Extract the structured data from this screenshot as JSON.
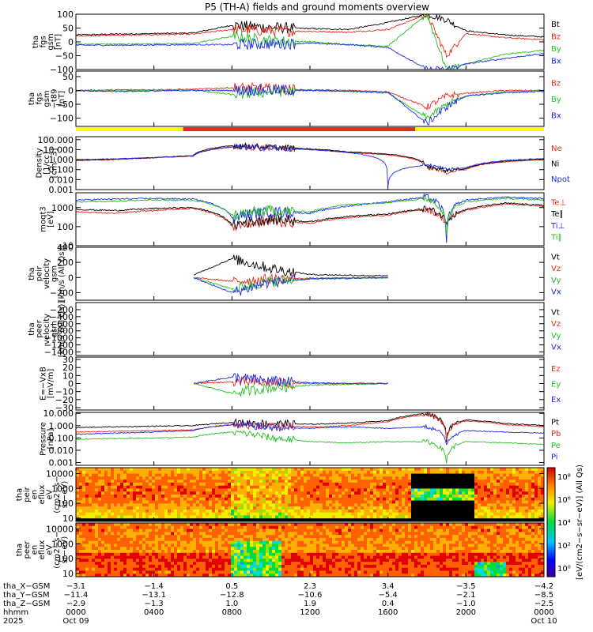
{
  "title": "P5 (TH-A) fields and ground moments overview",
  "panels": [
    {
      "id": "p1",
      "type": "line",
      "ylabel": [
        "tha",
        "fgs",
        "gsm",
        "[nT]"
      ],
      "ylim": [
        -100,
        100
      ],
      "scale": "linear",
      "ticks": [
        {
          "v": 100,
          "t": "100"
        },
        {
          "v": 50,
          "t": "50"
        },
        {
          "v": 0,
          "t": "0"
        },
        {
          "v": -50,
          "t": "−50"
        },
        {
          "v": -100,
          "t": "−100"
        }
      ],
      "legend": [
        {
          "label": "Bt",
          "color": "#000000"
        },
        {
          "label": "Bz",
          "color": "#e8291c"
        },
        {
          "label": "By",
          "color": "#22c01e"
        },
        {
          "label": "Bx",
          "color": "#1c2ae8"
        }
      ]
    },
    {
      "id": "p2",
      "type": "line",
      "ylabel": [
        "tha",
        "fgs",
        "gsm",
        "−t89",
        "[nT]"
      ],
      "ylim": [
        -130,
        70
      ],
      "scale": "linear",
      "ticks": [
        {
          "v": 50,
          "t": "50"
        },
        {
          "v": 0,
          "t": "0"
        },
        {
          "v": -50,
          "t": "−50"
        },
        {
          "v": -100,
          "t": "−100"
        }
      ],
      "legend": [
        {
          "label": "Bz",
          "color": "#e8291c"
        },
        {
          "label": "By",
          "color": "#22c01e"
        },
        {
          "label": "Bx",
          "color": "#1c2ae8"
        }
      ]
    },
    {
      "id": "p3",
      "type": "line",
      "ylabel": [
        "Density",
        "[1/cc]",
        "[cm−3]"
      ],
      "ylim": [
        0.001,
        200
      ],
      "scale": "log",
      "ticks": [
        {
          "v": 100,
          "t": "100.000"
        },
        {
          "v": 10,
          "t": "10.000"
        },
        {
          "v": 1,
          "t": "1.000"
        },
        {
          "v": 0.1,
          "t": "0.100"
        },
        {
          "v": 0.01,
          "t": "0.010"
        },
        {
          "v": 0.001,
          "t": "0.001"
        }
      ],
      "legend": [
        {
          "label": "Ne",
          "color": "#e8291c"
        },
        {
          "label": "Ni",
          "color": "#000000"
        },
        {
          "label": "Npot",
          "color": "#1c2ae8"
        }
      ]
    },
    {
      "id": "p4",
      "type": "line",
      "ylabel": [
        "moqt3",
        "[eV]"
      ],
      "ylim": [
        10,
        6000
      ],
      "scale": "log",
      "ticks": [
        {
          "v": 1000,
          "t": "1000"
        },
        {
          "v": 100,
          "t": "100"
        },
        {
          "v": 10,
          "t": "10"
        }
      ],
      "legend": [
        {
          "label": "Te⊥",
          "color": "#e8291c"
        },
        {
          "label": "Te∥",
          "color": "#000000"
        },
        {
          "label": "Ti⊥",
          "color": "#1c2ae8"
        },
        {
          "label": "Ti∥",
          "color": "#22c01e"
        }
      ]
    },
    {
      "id": "p5",
      "type": "line",
      "ylabel": [
        "tha",
        "peir",
        "velocity",
        "gsm",
        "[km/s (All Qs)]"
      ],
      "ylim": [
        -300,
        400
      ],
      "scale": "linear",
      "ticks": [
        {
          "v": 400,
          "t": "400"
        },
        {
          "v": 200,
          "t": "200"
        },
        {
          "v": 0,
          "t": "0"
        },
        {
          "v": -200,
          "t": "−200"
        }
      ],
      "legend": [
        {
          "label": "Vt",
          "color": "#000000"
        },
        {
          "label": "Vz",
          "color": "#e8291c"
        },
        {
          "label": "Vy",
          "color": "#22c01e"
        },
        {
          "label": "Vx",
          "color": "#1c2ae8"
        }
      ]
    },
    {
      "id": "p6",
      "type": "line",
      "ylabel": [
        "tha",
        "peer",
        "velocity",
        "gsm",
        "[km/s (All Qs)]"
      ],
      "ylim": [
        -1500,
        0
      ],
      "scale": "linear",
      "ticks": [
        {
          "v": -200,
          "t": "−200"
        },
        {
          "v": -400,
          "t": "−400"
        },
        {
          "v": -600,
          "t": "−600"
        },
        {
          "v": -800,
          "t": "−800"
        },
        {
          "v": -1000,
          "t": "−1000"
        },
        {
          "v": -1200,
          "t": "−1200"
        },
        {
          "v": -1400,
          "t": "−1400"
        }
      ],
      "legend": [
        {
          "label": "Vt",
          "color": "#000000"
        },
        {
          "label": "Vz",
          "color": "#e8291c"
        },
        {
          "label": "Vy",
          "color": "#22c01e"
        },
        {
          "label": "Vx",
          "color": "#1c2ae8"
        }
      ]
    },
    {
      "id": "p7",
      "type": "line",
      "ylabel": [
        "E=−VxB",
        "[mV/m]"
      ],
      "ylim": [
        -33,
        33
      ],
      "scale": "linear",
      "ticks": [
        {
          "v": 30,
          "t": "30"
        },
        {
          "v": 20,
          "t": "20"
        },
        {
          "v": 10,
          "t": "10"
        },
        {
          "v": 0,
          "t": "0"
        },
        {
          "v": -10,
          "t": "−10"
        },
        {
          "v": -20,
          "t": "−20"
        },
        {
          "v": -30,
          "t": "−30"
        }
      ],
      "legend": [
        {
          "label": "Ez",
          "color": "#e8291c"
        },
        {
          "label": "Ey",
          "color": "#22c01e"
        },
        {
          "label": "Ex",
          "color": "#1c2ae8"
        }
      ]
    },
    {
      "id": "p8",
      "type": "line",
      "ylabel": [
        "Pressure",
        "[nPa]"
      ],
      "ylim": [
        0.0006,
        12
      ],
      "scale": "log",
      "ticks": [
        {
          "v": 10,
          "t": "10.000"
        },
        {
          "v": 1,
          "t": "1.000"
        },
        {
          "v": 0.1,
          "t": "0.100"
        },
        {
          "v": 0.01,
          "t": "0.010"
        },
        {
          "v": 0.001,
          "t": "0.001"
        }
      ],
      "legend": [
        {
          "label": "Pt",
          "color": "#000000"
        },
        {
          "label": "Pb",
          "color": "#e8291c"
        },
        {
          "label": "Pe",
          "color": "#22c01e"
        },
        {
          "label": "Pi",
          "color": "#1c2ae8"
        }
      ]
    },
    {
      "id": "p9",
      "type": "heatmap",
      "ylabel": [
        "tha",
        "peir",
        "en",
        "eflux",
        "eV",
        "(cm2−s−",
        "sr−eV)"
      ],
      "ylim": [
        6,
        25000
      ],
      "scale": "log",
      "ticks": [
        {
          "v": 10000,
          "t": "10000"
        },
        {
          "v": 1000,
          "t": "1000"
        },
        {
          "v": 100,
          "t": "100"
        },
        {
          "v": 10,
          "t": "10"
        }
      ]
    },
    {
      "id": "p10",
      "type": "heatmap",
      "ylabel": [
        "tha",
        "peer",
        "en",
        "eflux",
        "eV",
        "(cm2−s−",
        "sr−eV)"
      ],
      "ylim": [
        6,
        25000
      ],
      "scale": "log",
      "ticks": [
        {
          "v": 10000,
          "t": "10000"
        },
        {
          "v": 1000,
          "t": "1000"
        },
        {
          "v": 100,
          "t": "100"
        },
        {
          "v": 10,
          "t": "10"
        }
      ]
    }
  ],
  "mode_bar": {
    "colors": {
      "slow": "#ffff00",
      "fast": "#e8291c"
    },
    "segments": [
      {
        "from": 0,
        "to": 5.5,
        "mode": "slow"
      },
      {
        "from": 5.5,
        "to": 17.4,
        "mode": "fast"
      },
      {
        "from": 17.4,
        "to": 24,
        "mode": "slow"
      }
    ]
  },
  "colorbar": {
    "label": "[eV/(cm2−s−sr−eV)] (All Qs)",
    "tick_labels": [
      "10⁸",
      "10⁶",
      "10⁴",
      "10²",
      "10⁰"
    ]
  },
  "xaxis": {
    "row_labels": [
      "tha_X−GSM",
      "tha_Y−GSM",
      "tha_Z−GSM",
      "hhmm",
      "2025"
    ],
    "ticks": [
      {
        "h": 0,
        "x": "−3.1",
        "y": "−11.4",
        "z": "−2.9",
        "hhmm": "0000",
        "date": "Oct 09"
      },
      {
        "h": 4,
        "x": "−1.4",
        "y": "−13.1",
        "z": "−1.3",
        "hhmm": "0400",
        "date": ""
      },
      {
        "h": 8,
        "x": "0.5",
        "y": "−12.8",
        "z": "1.0",
        "hhmm": "0800",
        "date": ""
      },
      {
        "h": 12,
        "x": "2.3",
        "y": "−10.6",
        "z": "1.9",
        "hhmm": "1200",
        "date": ""
      },
      {
        "h": 16,
        "x": "3.4",
        "y": "−5.4",
        "z": "0.4",
        "hhmm": "1600",
        "date": ""
      },
      {
        "h": 20,
        "x": "−3.5",
        "y": "−2.1",
        "z": "−1.0",
        "hhmm": "2000",
        "date": ""
      },
      {
        "h": 24,
        "x": "−4.2",
        "y": "−8.5",
        "z": "−2.5",
        "hhmm": "0000",
        "date": "Oct 10"
      }
    ]
  },
  "chart_data": {
    "type": "line",
    "title": "P5 (TH-A) fields and ground moments overview",
    "x_unit": "hours (UT) from 2025 Oct 09 0000",
    "x": [
      0,
      2,
      4,
      6,
      8,
      10,
      12,
      14,
      16,
      18,
      19,
      20,
      22,
      24
    ],
    "panels": [
      {
        "panel": "B fgs gsm [nT]",
        "series": [
          {
            "name": "Bt",
            "values": [
              25,
              28,
              30,
              32,
              60,
              52,
              48,
              45,
              70,
              100,
              80,
              40,
              25,
              18
            ]
          },
          {
            "name": "Bz",
            "values": [
              22,
              24,
              26,
              28,
              45,
              40,
              38,
              35,
              45,
              100,
              -50,
              30,
              15,
              8
            ]
          },
          {
            "name": "By",
            "values": [
              -8,
              -8,
              -7,
              -6,
              20,
              5,
              0,
              -10,
              -15,
              100,
              -100,
              -80,
              -45,
              -30
            ]
          },
          {
            "name": "Bx",
            "values": [
              -12,
              -12,
              -11,
              -10,
              -10,
              -8,
              -5,
              -10,
              -20,
              -100,
              -100,
              -80,
              -60,
              -42
            ]
          }
        ]
      },
      {
        "panel": "B fgs gsm − t89 [nT]",
        "series": [
          {
            "name": "Bz",
            "values": [
              0,
              2,
              3,
              4,
              10,
              5,
              2,
              0,
              -5,
              -60,
              -20,
              -10,
              0,
              0
            ]
          },
          {
            "name": "By",
            "values": [
              0,
              -2,
              0,
              2,
              -15,
              -5,
              0,
              -3,
              -10,
              -100,
              -50,
              -20,
              -5,
              0
            ]
          },
          {
            "name": "Bx",
            "values": [
              -2,
              -3,
              -2,
              0,
              0,
              2,
              0,
              -2,
              -6,
              -120,
              -60,
              -20,
              -8,
              -3
            ]
          }
        ]
      },
      {
        "panel": "Density [1/cc]",
        "series": [
          {
            "name": "Ne",
            "values": [
              0.8,
              1.0,
              1.5,
              2.2,
              20,
              15,
              10,
              5,
              3,
              0.15,
              0.05,
              0.1,
              0.6,
              1.0
            ]
          },
          {
            "name": "Ni",
            "values": [
              0.9,
              1.1,
              1.6,
              2.5,
              25,
              18,
              12,
              6,
              3.5,
              0.2,
              0.08,
              0.12,
              0.7,
              1.2
            ]
          },
          {
            "name": "Npot",
            "values": [
              1.0,
              1.2,
              1.6,
              2.4,
              18,
              14,
              10,
              5,
              0.002,
              0.3,
              0.1,
              0.15,
              0.8,
              1.3
            ]
          }
        ]
      },
      {
        "panel": "moqt3 [eV]",
        "series": [
          {
            "name": "Te⊥",
            "values": [
              600,
              500,
              700,
              900,
              100,
              200,
              150,
              300,
              400,
              800,
              150,
              700,
              1500,
              1200
            ]
          },
          {
            "name": "Te∥",
            "values": [
              800,
              700,
              900,
              1000,
              120,
              250,
              180,
              350,
              450,
              900,
              200,
              800,
              1700,
              1300
            ]
          },
          {
            "name": "Ti⊥",
            "values": [
              2500,
              2800,
              3000,
              2800,
              300,
              600,
              500,
              1200,
              2000,
              3500,
              15,
              2500,
              3500,
              3000
            ]
          },
          {
            "name": "Ti∥",
            "values": [
              2000,
              2200,
              2500,
              2400,
              400,
              700,
              600,
              1500,
              1800,
              3000,
              30,
              2000,
              3000,
              2500
            ]
          }
        ]
      },
      {
        "panel": "peir velocity gsm [km/s]",
        "series": [
          {
            "name": "Vt",
            "values": [
              null,
              null,
              null,
              30,
              250,
              120,
              40,
              30,
              20,
              null,
              null,
              null,
              null,
              null
            ]
          },
          {
            "name": "Vz",
            "values": [
              null,
              null,
              null,
              0,
              -50,
              -20,
              -10,
              -5,
              0,
              null,
              null,
              null,
              null,
              null
            ]
          },
          {
            "name": "Vy",
            "values": [
              null,
              null,
              null,
              5,
              -150,
              -50,
              -20,
              -10,
              -5,
              null,
              null,
              null,
              null,
              null
            ]
          },
          {
            "name": "Vx",
            "values": [
              null,
              null,
              null,
              0,
              -200,
              -60,
              -20,
              -10,
              0,
              null,
              null,
              null,
              null,
              null
            ]
          }
        ]
      },
      {
        "panel": "E=−VxB [mV/m]",
        "series": [
          {
            "name": "Ez",
            "values": [
              null,
              null,
              null,
              0,
              2,
              1,
              0,
              0,
              0,
              null,
              null,
              null,
              null,
              null
            ]
          },
          {
            "name": "Ey",
            "values": [
              null,
              null,
              null,
              0,
              -12,
              -5,
              -2,
              -1,
              0,
              null,
              null,
              null,
              null,
              null
            ]
          },
          {
            "name": "Ex",
            "values": [
              null,
              null,
              null,
              0,
              8,
              3,
              1,
              0,
              0,
              null,
              null,
              null,
              null,
              null
            ]
          }
        ]
      },
      {
        "panel": "Pressure [nPa]",
        "series": [
          {
            "name": "Pt",
            "values": [
              0.7,
              0.8,
              0.9,
              1.0,
              1.8,
              1.5,
              1.3,
              1.6,
              2.5,
              10,
              0.06,
              3,
              1.5,
              1.0
            ]
          },
          {
            "name": "Pb",
            "values": [
              0.3,
              0.35,
              0.4,
              0.45,
              1.2,
              0.9,
              0.8,
              1.0,
              2.0,
              8,
              0.05,
              2.5,
              1.2,
              0.8
            ]
          },
          {
            "name": "Pe",
            "values": [
              0.08,
              0.09,
              0.1,
              0.12,
              0.3,
              0.1,
              0.05,
              0.04,
              0.05,
              0.05,
              0.001,
              0.05,
              0.04,
              0.03
            ]
          },
          {
            "name": "Pi",
            "values": [
              0.2,
              0.25,
              0.3,
              0.4,
              1.2,
              0.7,
              0.6,
              0.8,
              0.6,
              0.8,
              0.03,
              0.4,
              0.3,
              0.25
            ]
          }
        ]
      }
    ],
    "spectrograms": [
      {
        "panel": "peir en eflux",
        "y_unit": "eV",
        "ylim": [
          6,
          25000
        ]
      },
      {
        "panel": "peer en eflux",
        "y_unit": "eV",
        "ylim": [
          6,
          25000
        ]
      }
    ]
  }
}
